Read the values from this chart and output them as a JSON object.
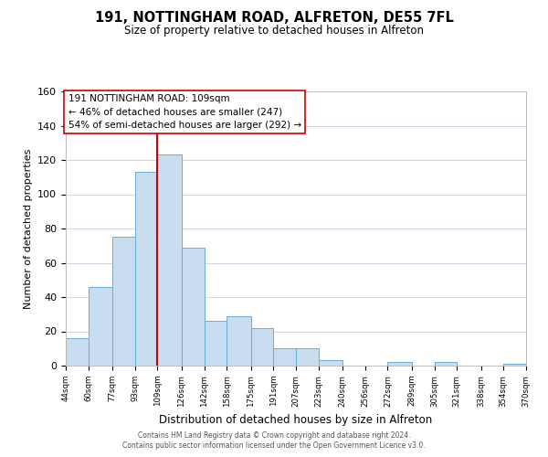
{
  "title": "191, NOTTINGHAM ROAD, ALFRETON, DE55 7FL",
  "subtitle": "Size of property relative to detached houses in Alfreton",
  "xlabel": "Distribution of detached houses by size in Alfreton",
  "ylabel": "Number of detached properties",
  "bar_edges": [
    44,
    60,
    77,
    93,
    109,
    126,
    142,
    158,
    175,
    191,
    207,
    223,
    240,
    256,
    272,
    289,
    305,
    321,
    338,
    354,
    370
  ],
  "bar_heights": [
    16,
    46,
    75,
    113,
    123,
    69,
    26,
    29,
    22,
    10,
    10,
    3,
    0,
    0,
    2,
    0,
    2,
    0,
    0,
    1
  ],
  "bar_color": "#c8ddf0",
  "bar_edgecolor": "#6aaed6",
  "vline_x": 109,
  "vline_color": "#cc0000",
  "ylim": [
    0,
    160
  ],
  "yticks": [
    0,
    20,
    40,
    60,
    80,
    100,
    120,
    140,
    160
  ],
  "annotation_title": "191 NOTTINGHAM ROAD: 109sqm",
  "annotation_line1": "← 46% of detached houses are smaller (247)",
  "annotation_line2": "54% of semi-detached houses are larger (292) →",
  "footnote1": "Contains HM Land Registry data © Crown copyright and database right 2024.",
  "footnote2": "Contains public sector information licensed under the Open Government Licence v3.0.",
  "tick_labels": [
    "44sqm",
    "60sqm",
    "77sqm",
    "93sqm",
    "109sqm",
    "126sqm",
    "142sqm",
    "158sqm",
    "175sqm",
    "191sqm",
    "207sqm",
    "223sqm",
    "240sqm",
    "256sqm",
    "272sqm",
    "289sqm",
    "305sqm",
    "321sqm",
    "338sqm",
    "354sqm",
    "370sqm"
  ],
  "background_color": "#ffffff",
  "grid_color": "#d0d8e8"
}
